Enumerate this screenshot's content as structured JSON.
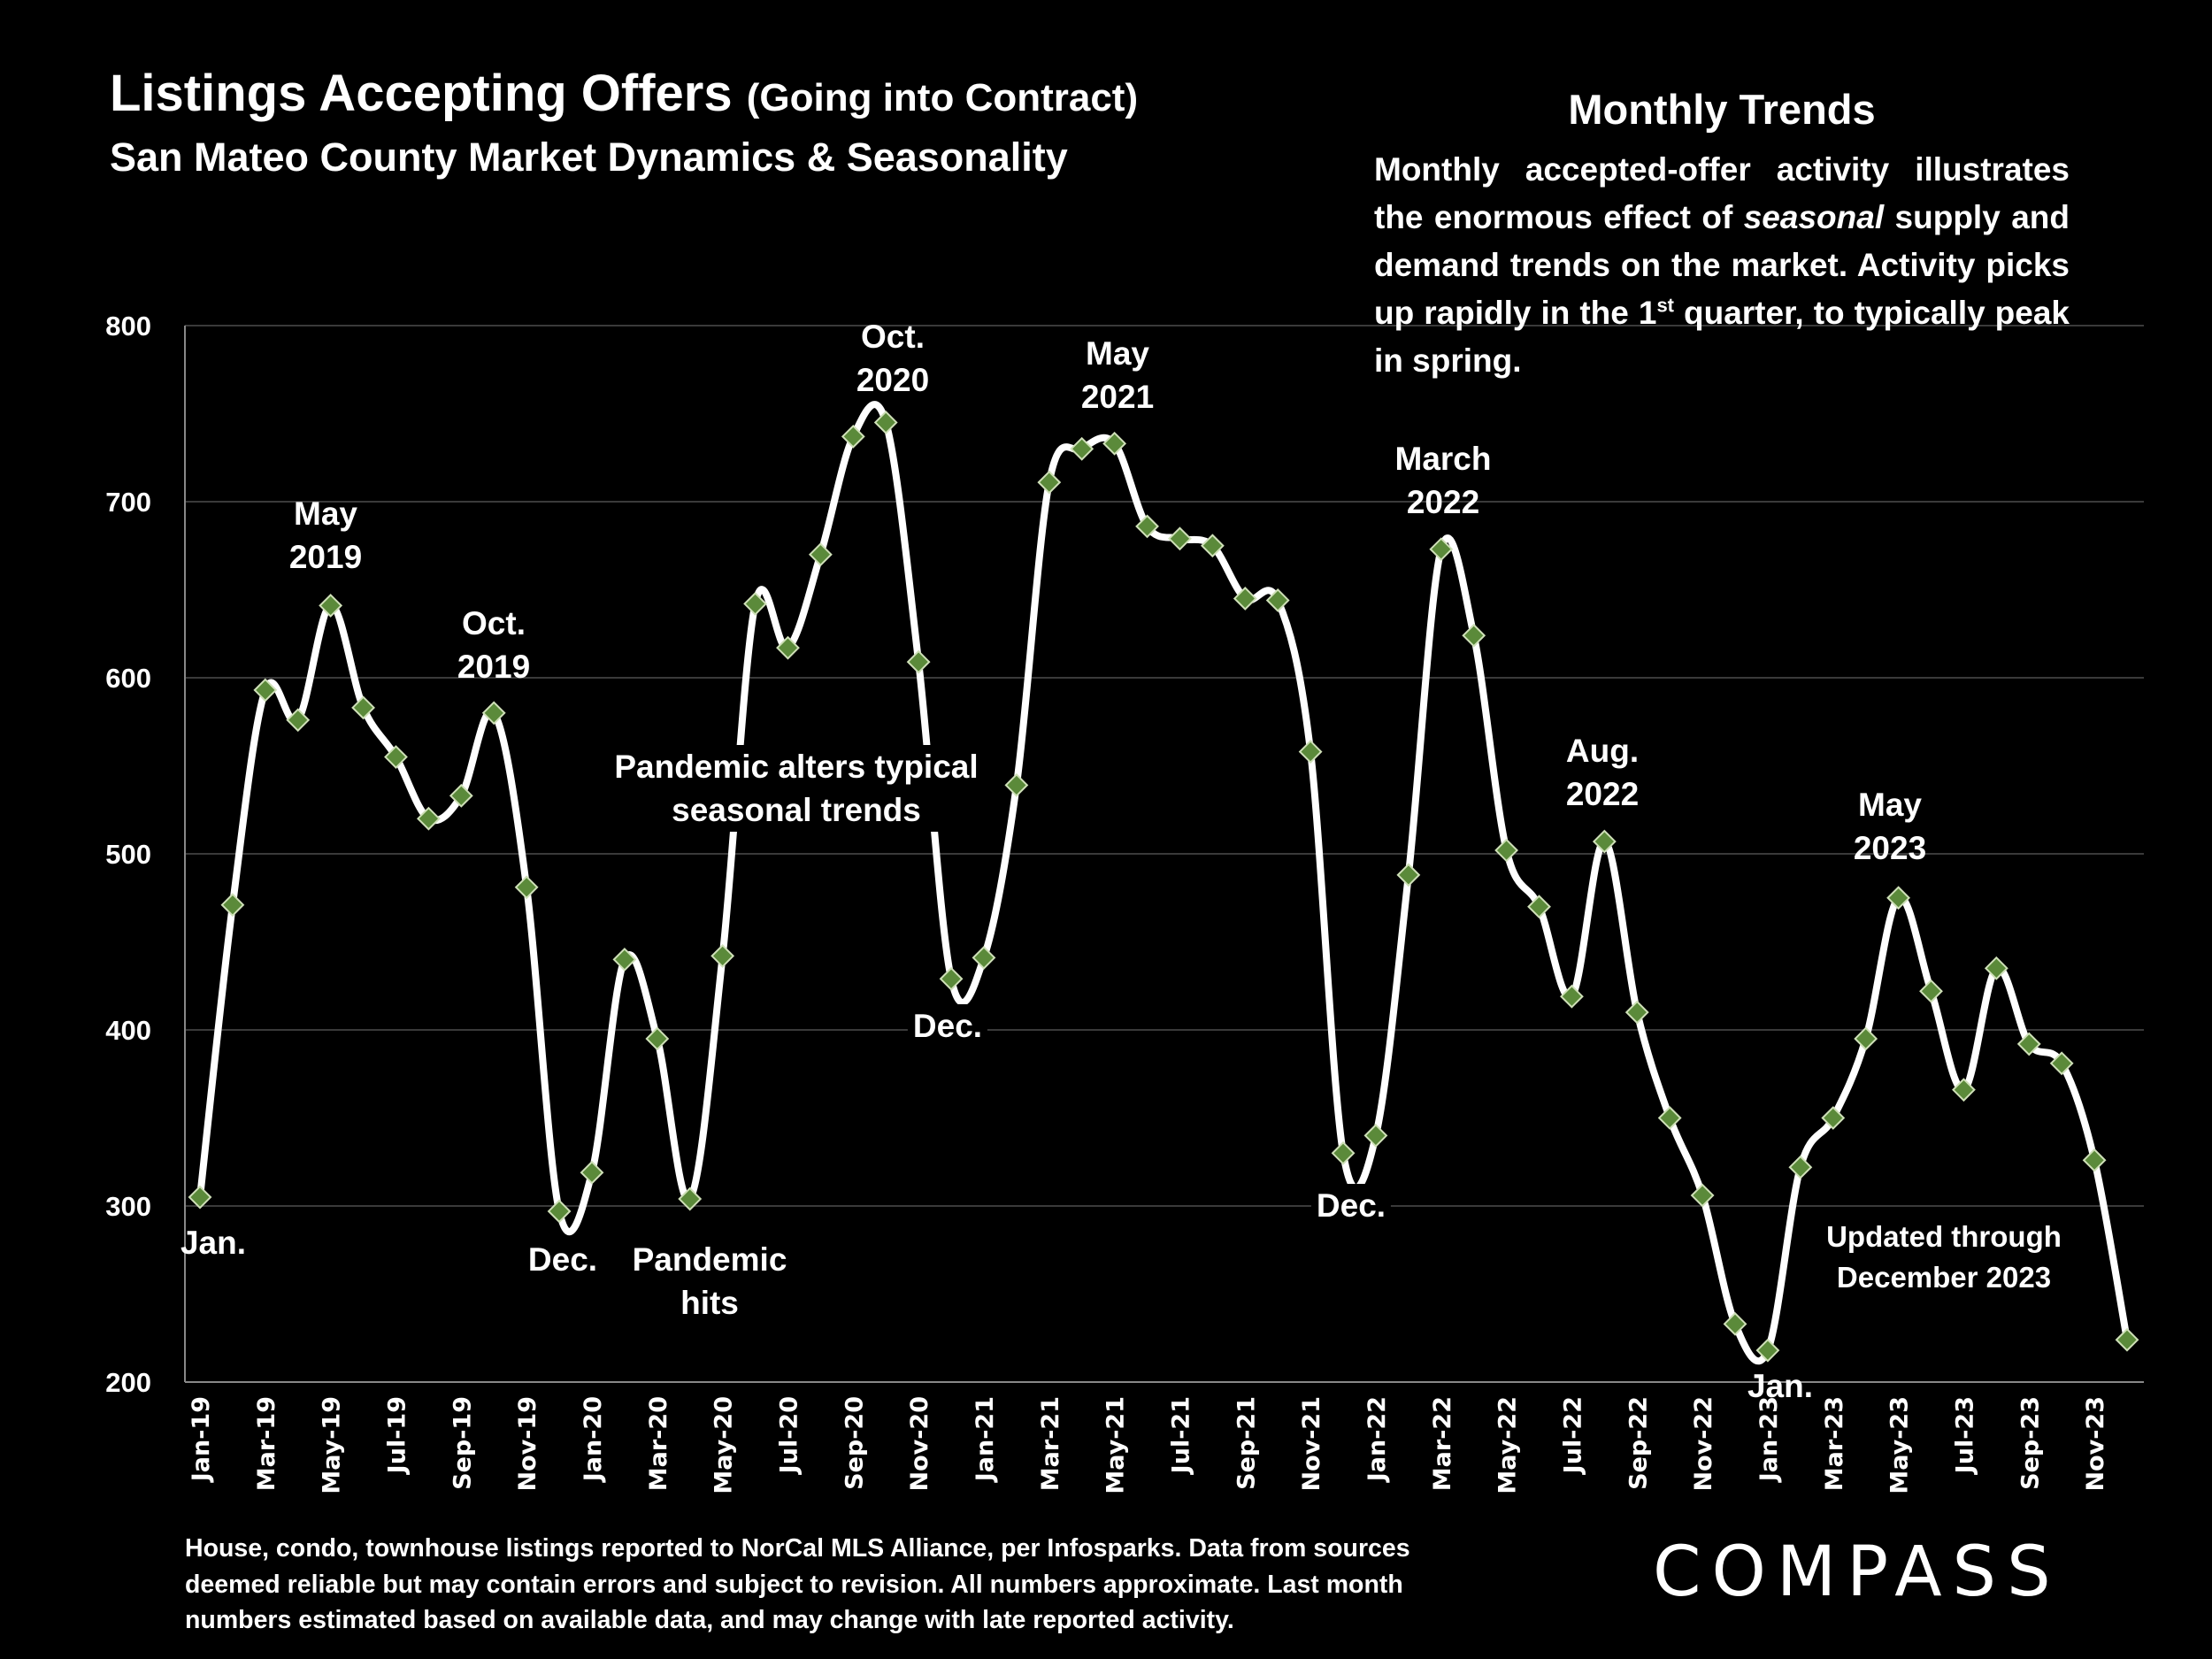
{
  "header": {
    "title_main": "Listings Accepting Offers",
    "title_paren": "(Going into Contract)",
    "subtitle": "San Mateo County Market Dynamics & Seasonality"
  },
  "trends": {
    "title": "Monthly Trends",
    "text_a": "Monthly accepted-offer activity illustrates the enormous effect of ",
    "text_italic": "seasonal",
    "text_b": " supply and demand trends on the market. Activity picks up rapidly in the 1",
    "text_sup": "st",
    "text_c": " quarter, to typically peak in spring."
  },
  "annotations": {
    "may2019": [
      "May",
      "2019"
    ],
    "oct2019": [
      "Oct.",
      "2019"
    ],
    "jan2019": "Jan.",
    "dec2019": "Dec.",
    "pandemic_hits": [
      "Pandemic",
      "hits"
    ],
    "pandemic_alters": [
      "Pandemic alters typical",
      "seasonal trends"
    ],
    "oct2020": [
      "Oct.",
      "2020"
    ],
    "dec2020": "Dec.",
    "may2021": [
      "May",
      "2021"
    ],
    "mar2022": [
      "March",
      "2022"
    ],
    "dec2021": "Dec.",
    "aug2022": [
      "Aug.",
      "2022"
    ],
    "jan2023": "Jan.",
    "may2023": [
      "May",
      "2023"
    ],
    "updated": [
      "Updated through",
      "December 2023"
    ]
  },
  "footnote": "House, condo, townhouse listings reported to NorCal MLS Alliance, per Infosparks. Data from sources deemed reliable but may contain errors and subject to revision. All numbers approximate. Last month numbers estimated based on available data, and may change with late reported activity.",
  "logo": "COMPASS",
  "colors": {
    "background": "#000000",
    "line": "#ffffff",
    "marker": "#5b8a3a",
    "grid": "#3a3a3a"
  },
  "chart_data": {
    "type": "line",
    "title": "Listings Accepting Offers (Going into Contract)",
    "xlabel": "",
    "ylabel": "",
    "ylim": [
      200,
      800
    ],
    "yticks": [
      200,
      300,
      400,
      500,
      600,
      700,
      800
    ],
    "grid": true,
    "x": [
      "Jan-19",
      "Feb-19",
      "Mar-19",
      "Apr-19",
      "May-19",
      "Jun-19",
      "Jul-19",
      "Aug-19",
      "Sep-19",
      "Oct-19",
      "Nov-19",
      "Dec-19",
      "Jan-20",
      "Feb-20",
      "Mar-20",
      "Apr-20",
      "May-20",
      "Jun-20",
      "Jul-20",
      "Aug-20",
      "Sep-20",
      "Oct-20",
      "Nov-20",
      "Dec-20",
      "Jan-21",
      "Feb-21",
      "Mar-21",
      "Apr-21",
      "May-21",
      "Jun-21",
      "Jul-21",
      "Aug-21",
      "Sep-21",
      "Oct-21",
      "Nov-21",
      "Dec-21",
      "Jan-22",
      "Feb-22",
      "Mar-22",
      "Apr-22",
      "May-22",
      "Jun-22",
      "Jul-22",
      "Aug-22",
      "Sep-22",
      "Oct-22",
      "Nov-22",
      "Dec-22",
      "Jan-23",
      "Feb-23",
      "Mar-23",
      "Apr-23",
      "May-23",
      "Jun-23",
      "Jul-23",
      "Aug-23",
      "Sep-23",
      "Oct-23",
      "Nov-23",
      "Dec-23"
    ],
    "series": [
      {
        "name": "Listings Accepting Offers",
        "values": [
          305,
          471,
          593,
          576,
          641,
          583,
          555,
          520,
          533,
          580,
          481,
          297,
          319,
          440,
          395,
          304,
          442,
          642,
          617,
          670,
          737,
          745,
          609,
          429,
          441,
          539,
          711,
          730,
          733,
          686,
          679,
          675,
          645,
          644,
          558,
          330,
          340,
          488,
          673,
          624,
          502,
          470,
          419,
          507,
          410,
          350,
          306,
          233,
          218,
          322,
          350,
          395,
          475,
          422,
          366,
          435,
          392,
          381,
          326,
          224
        ]
      }
    ]
  }
}
